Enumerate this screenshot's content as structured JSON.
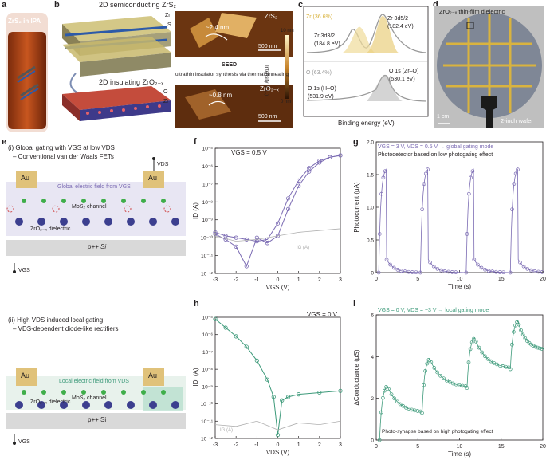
{
  "panels": {
    "a": {
      "letter": "a",
      "vial_label": "ZrS₂ in IPA"
    },
    "b": {
      "letter": "b",
      "top_title": "2D semiconducting ZrS₂",
      "zr": "Zr",
      "s": "S",
      "bottom_title": "2D insulating ZrO₂₋ₓ",
      "o": "O",
      "zr2": "Zr",
      "seed_title": "SEED",
      "seed_subtitle": "ultrathin insulator synthesis via thermal annealing",
      "afm1_material": "ZrS₂",
      "afm1_height": "~2.4 nm",
      "afm1_scale": "500 nm",
      "afm2_material": "ZrO₂₋ₓ",
      "afm2_height": "~0.8 nm",
      "afm2_scale": "500 nm",
      "colorbar_top": "10 nm",
      "colorbar_bottom": "0 nm",
      "colorbar_axis": "Intensity (a.u.)"
    },
    "c": {
      "letter": "c",
      "zr_pct": "Zr (36.6%)",
      "zr52": "Zr 3d5/2",
      "zr52_ev": "(182.4 eV)",
      "zr32": "Zr 3d3/2",
      "zr32_ev": "(184.8 eV)",
      "o_pct": "O (63.4%)",
      "o1s_zro": "O 1s (Zr–O)",
      "o1s_zro_ev": "(530.1 eV)",
      "o1s_ho": "O 1s (H–O)",
      "o1s_ho_ev": "(531.9 eV)",
      "xlabel": "Binding energy (eV)"
    },
    "d": {
      "letter": "d",
      "title": "ZrO₂₋ₓ thin-film dielectric",
      "scale": "1 cm",
      "wafer": "2-inch wafer"
    },
    "e": {
      "letter": "e",
      "i_title": "(i) Global gating with VGS at low VDS",
      "i_sub": "– Conventional van der Waals FETs",
      "au": "Au",
      "vds": "VDS",
      "global_field": "Global electric field from VGS",
      "mos2": "MoS₂ channel",
      "zro": "ZrO₂₋ₓ dielectric",
      "si": "p++ Si",
      "vgs": "VGS",
      "ii_title": "(ii) High VDS induced local gating",
      "ii_sub": "– VDS-dependent diode-like rectifiers",
      "local_field": "Local electric field from VDS"
    },
    "f": {
      "letter": "f",
      "annotation": "VGS = 0.5 V",
      "ylabel": "ID (A)",
      "xlabel": "VGS (V)",
      "ig": "IG (A)"
    },
    "g": {
      "letter": "g",
      "annotation": "VGS = 3 V, VDS = 0.5 V → global gating mode",
      "subtitle": "Photodetector based on low photogating effect",
      "ylabel": "Photocurrent (μA)",
      "xlabel": "Time (s)"
    },
    "h": {
      "letter": "h",
      "annotation": "VGS = 0 V",
      "ylabel": "|ID| (A)",
      "xlabel": "VDS (V)",
      "ig": "IG (A)"
    },
    "i": {
      "letter": "i",
      "annotation": "VGS = 0 V, VDS = −3 V → local gating mode",
      "subtitle": "Photo-synapse based on high photogating effect",
      "ylabel": "ΔConductance (μS)",
      "xlabel": "Time (s)"
    }
  },
  "colors": {
    "purple": "#7b6bb3",
    "green": "#3d9a7a",
    "gold": "#d9b33f",
    "grey": "#b0b0b0"
  },
  "chart_data": [
    {
      "id": "f",
      "type": "line",
      "title": "",
      "xlabel": "VGS (V)",
      "ylabel": "ID (A)",
      "yscale": "log",
      "xlim": [
        -3,
        3
      ],
      "ylim_exp": [
        -12,
        -5
      ],
      "xticks": [
        "-3",
        "-2",
        "-1",
        "0",
        "1",
        "2",
        "3"
      ],
      "yticks": [
        "10⁻¹²",
        "10⁻¹¹",
        "10⁻¹⁰",
        "10⁻⁹",
        "10⁻⁸",
        "10⁻⁷",
        "10⁻⁶",
        "10⁻⁵"
      ],
      "series": [
        {
          "name": "ID forward",
          "x": [
            -3,
            -2.5,
            -2,
            -1.5,
            -1,
            -0.5,
            0,
            0.5,
            1,
            1.5,
            2,
            2.5,
            3
          ],
          "log_y": [
            -9.7,
            -9.9,
            -10.0,
            -10.1,
            -10.2,
            -10.1,
            -9.2,
            -7.8,
            -6.8,
            -6.1,
            -5.7,
            -5.5,
            -5.4
          ]
        },
        {
          "name": "ID reverse",
          "x": [
            3,
            2.5,
            2,
            1.5,
            1,
            0.5,
            0,
            -0.5,
            -1,
            -1.5,
            -2,
            -2.5,
            -3
          ],
          "log_y": [
            -5.4,
            -5.5,
            -5.8,
            -6.3,
            -7.1,
            -8.4,
            -9.9,
            -10.3,
            -10.0,
            -11.6,
            -10.5,
            -10.1,
            -9.8
          ]
        },
        {
          "name": "IG (A)",
          "x": [
            -3,
            -2,
            -1,
            0,
            1,
            2,
            3
          ],
          "log_y": [
            -9.9,
            -10.2,
            -10.1,
            -9.9,
            -9.7,
            -9.6,
            -9.5
          ]
        }
      ]
    },
    {
      "id": "g",
      "type": "line",
      "xlabel": "Time (s)",
      "ylabel": "Photocurrent (μA)",
      "xlim": [
        0,
        20
      ],
      "ylim": [
        0,
        2.0
      ],
      "xticks": [
        "0",
        "5",
        "10",
        "15",
        "20"
      ],
      "yticks": [
        "0",
        "0.5",
        "1.0",
        "1.5",
        "2.0"
      ],
      "pulse_starts": [
        0.3,
        5.3,
        10.8,
        16.1
      ],
      "peak": 1.62,
      "baseline": 0.0
    },
    {
      "id": "h",
      "type": "line",
      "xlabel": "VDS (V)",
      "ylabel": "|ID| (A)",
      "yscale": "log",
      "xlim": [
        -3,
        3
      ],
      "ylim_exp": [
        -12,
        -5
      ],
      "xticks": [
        "-3",
        "-2",
        "-1",
        "0",
        "1",
        "2",
        "3"
      ],
      "yticks": [
        "10⁻¹²",
        "10⁻¹¹",
        "10⁻¹⁰",
        "10⁻⁹",
        "10⁻⁸",
        "10⁻⁷",
        "10⁻⁶",
        "10⁻⁵"
      ],
      "series": [
        {
          "name": "|ID|",
          "x": [
            -3,
            -2.5,
            -2,
            -1.5,
            -1,
            -0.5,
            -0.2,
            0,
            0.2,
            0.5,
            1,
            2,
            3
          ],
          "log_y": [
            -5.1,
            -5.6,
            -6.1,
            -6.7,
            -7.5,
            -8.6,
            -9.6,
            -11.8,
            -9.8,
            -9.6,
            -9.45,
            -9.35,
            -9.25
          ]
        },
        {
          "name": "IG (A)",
          "x": [
            -3,
            -2,
            -1,
            0,
            1,
            2,
            3
          ],
          "log_y": [
            -11.2,
            -11.3,
            -11.0,
            -11.5,
            -11.1,
            -11.2,
            -11.0
          ]
        }
      ]
    },
    {
      "id": "i",
      "type": "line",
      "xlabel": "Time (s)",
      "ylabel": "ΔConductance (μS)",
      "xlim": [
        0,
        20
      ],
      "ylim": [
        0,
        6
      ],
      "xticks": [
        "0",
        "5",
        "10",
        "15",
        "20"
      ],
      "yticks": [
        "0",
        "2",
        "4",
        "6"
      ],
      "pulse_starts": [
        0.4,
        5.5,
        10.9,
        16.1
      ],
      "peaks": [
        2.6,
        3.9,
        4.9,
        5.7
      ],
      "ends": [
        1.3,
        2.5,
        3.4,
        4.3
      ]
    }
  ]
}
